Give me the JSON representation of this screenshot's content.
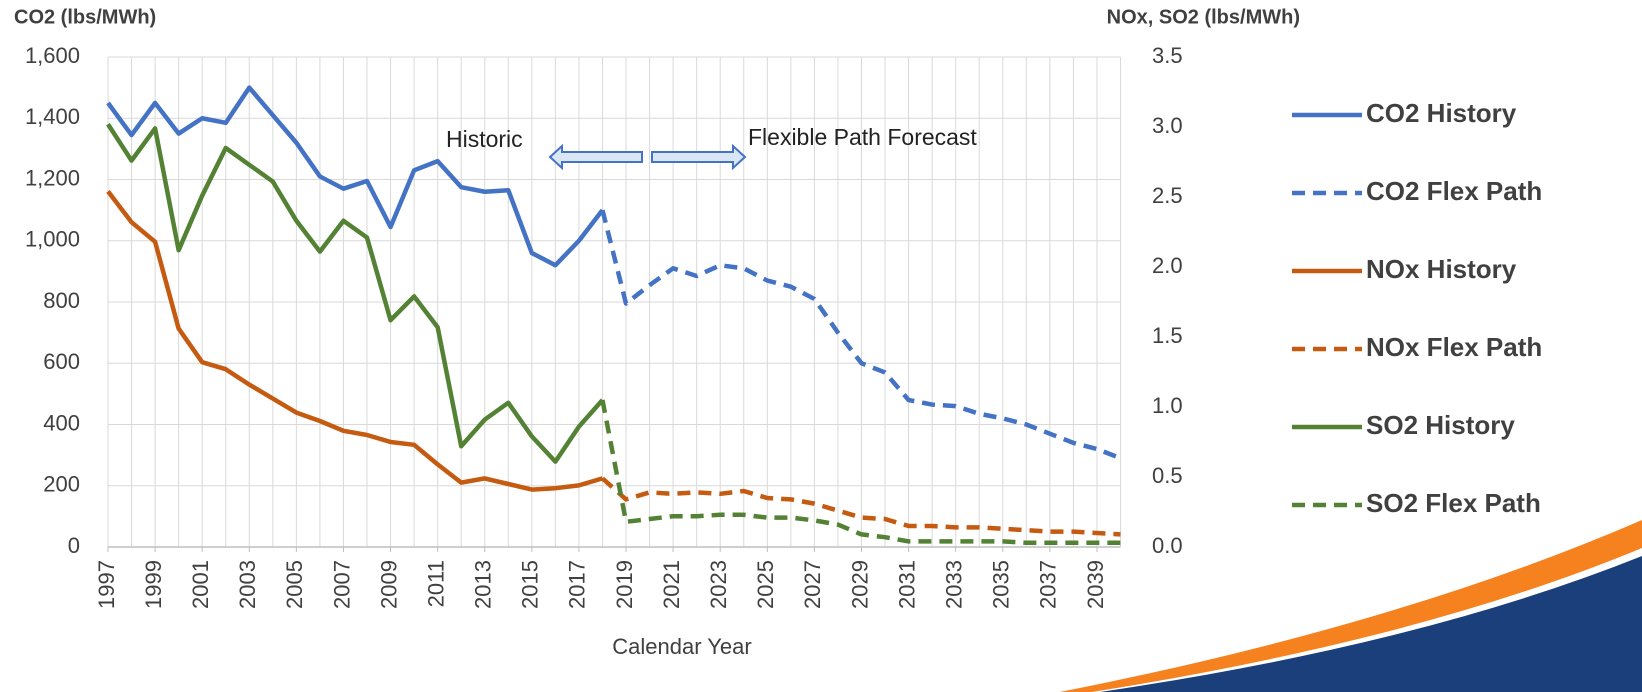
{
  "chart_data": {
    "type": "line",
    "y_label": "CO2 (lbs/MWh)",
    "y2_label": "NOx, SO2 (lbs/MWh)",
    "x_label": "Calendar Year",
    "annotations": [
      "Historic",
      "Flexible Path Forecast"
    ],
    "x": [
      1997,
      1998,
      1999,
      2000,
      2001,
      2002,
      2003,
      2004,
      2005,
      2006,
      2007,
      2008,
      2009,
      2010,
      2011,
      2012,
      2013,
      2014,
      2015,
      2016,
      2017,
      2018,
      2019,
      2020,
      2021,
      2022,
      2023,
      2024,
      2025,
      2026,
      2027,
      2028,
      2029,
      2030,
      2031,
      2032,
      2033,
      2034,
      2035,
      2036,
      2037,
      2038,
      2039,
      2040
    ],
    "xlim": [
      1997,
      2040
    ],
    "xticks": [
      1997,
      1999,
      2001,
      2003,
      2005,
      2007,
      2009,
      2011,
      2013,
      2015,
      2017,
      2019,
      2021,
      2023,
      2025,
      2027,
      2029,
      2031,
      2033,
      2035,
      2037,
      2039
    ],
    "ylim": [
      0,
      1600
    ],
    "yticks": [
      0,
      200,
      400,
      600,
      800,
      {
        "value": 1000,
        "label": "1,000"
      },
      {
        "value": 1200,
        "label": "1,200"
      },
      {
        "value": 1400,
        "label": "1,400"
      },
      {
        "value": 1600,
        "label": "1,600"
      }
    ],
    "y2lim": [
      0,
      3.5
    ],
    "y2ticks": [
      {
        "value": 0,
        "label": "0.0"
      },
      0.5,
      {
        "value": 1,
        "label": "1.0"
      },
      1.5,
      {
        "value": 2,
        "label": "2.0"
      },
      2.5,
      {
        "value": 3,
        "label": "3.0"
      },
      3.5
    ],
    "grid": true,
    "legend": "right",
    "series": [
      {
        "name": "CO2 History",
        "color": "#4472c4",
        "style": "solid",
        "values": [
          1450,
          1345,
          1450,
          1350,
          1400,
          1385,
          1500,
          1410,
          1320,
          1210,
          1170,
          1195,
          1045,
          1230,
          1260,
          1175,
          1160,
          1165,
          960,
          920,
          1000,
          1100,
          null,
          null,
          null,
          null,
          null,
          null,
          null,
          null,
          null,
          null,
          null,
          null,
          null,
          null,
          null,
          null,
          null,
          null,
          null,
          null,
          null,
          null
        ]
      },
      {
        "name": "CO2 Flex Path",
        "color": "#4472c4",
        "style": "dashed",
        "values": [
          null,
          null,
          null,
          null,
          null,
          null,
          null,
          null,
          null,
          null,
          null,
          null,
          null,
          null,
          null,
          null,
          null,
          null,
          null,
          null,
          null,
          1100,
          795,
          855,
          910,
          885,
          920,
          910,
          870,
          850,
          810,
          700,
          600,
          570,
          480,
          465,
          460,
          435,
          420,
          400,
          370,
          340,
          320,
          290
        ]
      },
      {
        "name": "NOx History",
        "color": "#c55a11",
        "style": "solid",
        "axis": "y2",
        "values": [
          2.54,
          2.32,
          2.18,
          1.56,
          1.32,
          1.27,
          1.16,
          1.06,
          0.96,
          0.9,
          0.83,
          0.8,
          0.75,
          0.73,
          0.59,
          0.46,
          0.49,
          0.45,
          0.41,
          0.42,
          0.44,
          0.49,
          null,
          null,
          null,
          null,
          null,
          null,
          null,
          null,
          null,
          null,
          null,
          null,
          null,
          null,
          null,
          null,
          null,
          null,
          null,
          null,
          null,
          null
        ]
      },
      {
        "name": "NOx Flex Path",
        "color": "#c55a11",
        "style": "dashed",
        "axis": "y2",
        "values": [
          null,
          null,
          null,
          null,
          null,
          null,
          null,
          null,
          null,
          null,
          null,
          null,
          null,
          null,
          null,
          null,
          null,
          null,
          null,
          null,
          null,
          0.49,
          0.34,
          0.39,
          0.38,
          0.39,
          0.38,
          0.4,
          0.35,
          0.34,
          0.31,
          0.26,
          0.21,
          0.2,
          0.15,
          0.15,
          0.14,
          0.14,
          0.13,
          0.12,
          0.11,
          0.11,
          0.1,
          0.09
        ]
      },
      {
        "name": "SO2 History",
        "color": "#548235",
        "style": "solid",
        "axis": "y2",
        "values": [
          3.02,
          2.76,
          2.99,
          2.12,
          2.51,
          2.85,
          2.73,
          2.61,
          2.33,
          2.11,
          2.33,
          2.21,
          1.62,
          1.79,
          1.57,
          0.72,
          0.91,
          1.03,
          0.79,
          0.61,
          0.86,
          1.05,
          null,
          null,
          null,
          null,
          null,
          null,
          null,
          null,
          null,
          null,
          null,
          null,
          null,
          null,
          null,
          null,
          null,
          null,
          null,
          null,
          null,
          null
        ]
      },
      {
        "name": "SO2 Flex Path",
        "color": "#548235",
        "style": "dashed",
        "axis": "y2",
        "values": [
          null,
          null,
          null,
          null,
          null,
          null,
          null,
          null,
          null,
          null,
          null,
          null,
          null,
          null,
          null,
          null,
          null,
          null,
          null,
          null,
          null,
          1.05,
          0.18,
          0.2,
          0.22,
          0.22,
          0.23,
          0.23,
          0.21,
          0.21,
          0.19,
          0.16,
          0.09,
          0.07,
          0.04,
          0.04,
          0.04,
          0.04,
          0.04,
          0.03,
          0.03,
          0.03,
          0.03,
          0.03
        ]
      }
    ]
  }
}
